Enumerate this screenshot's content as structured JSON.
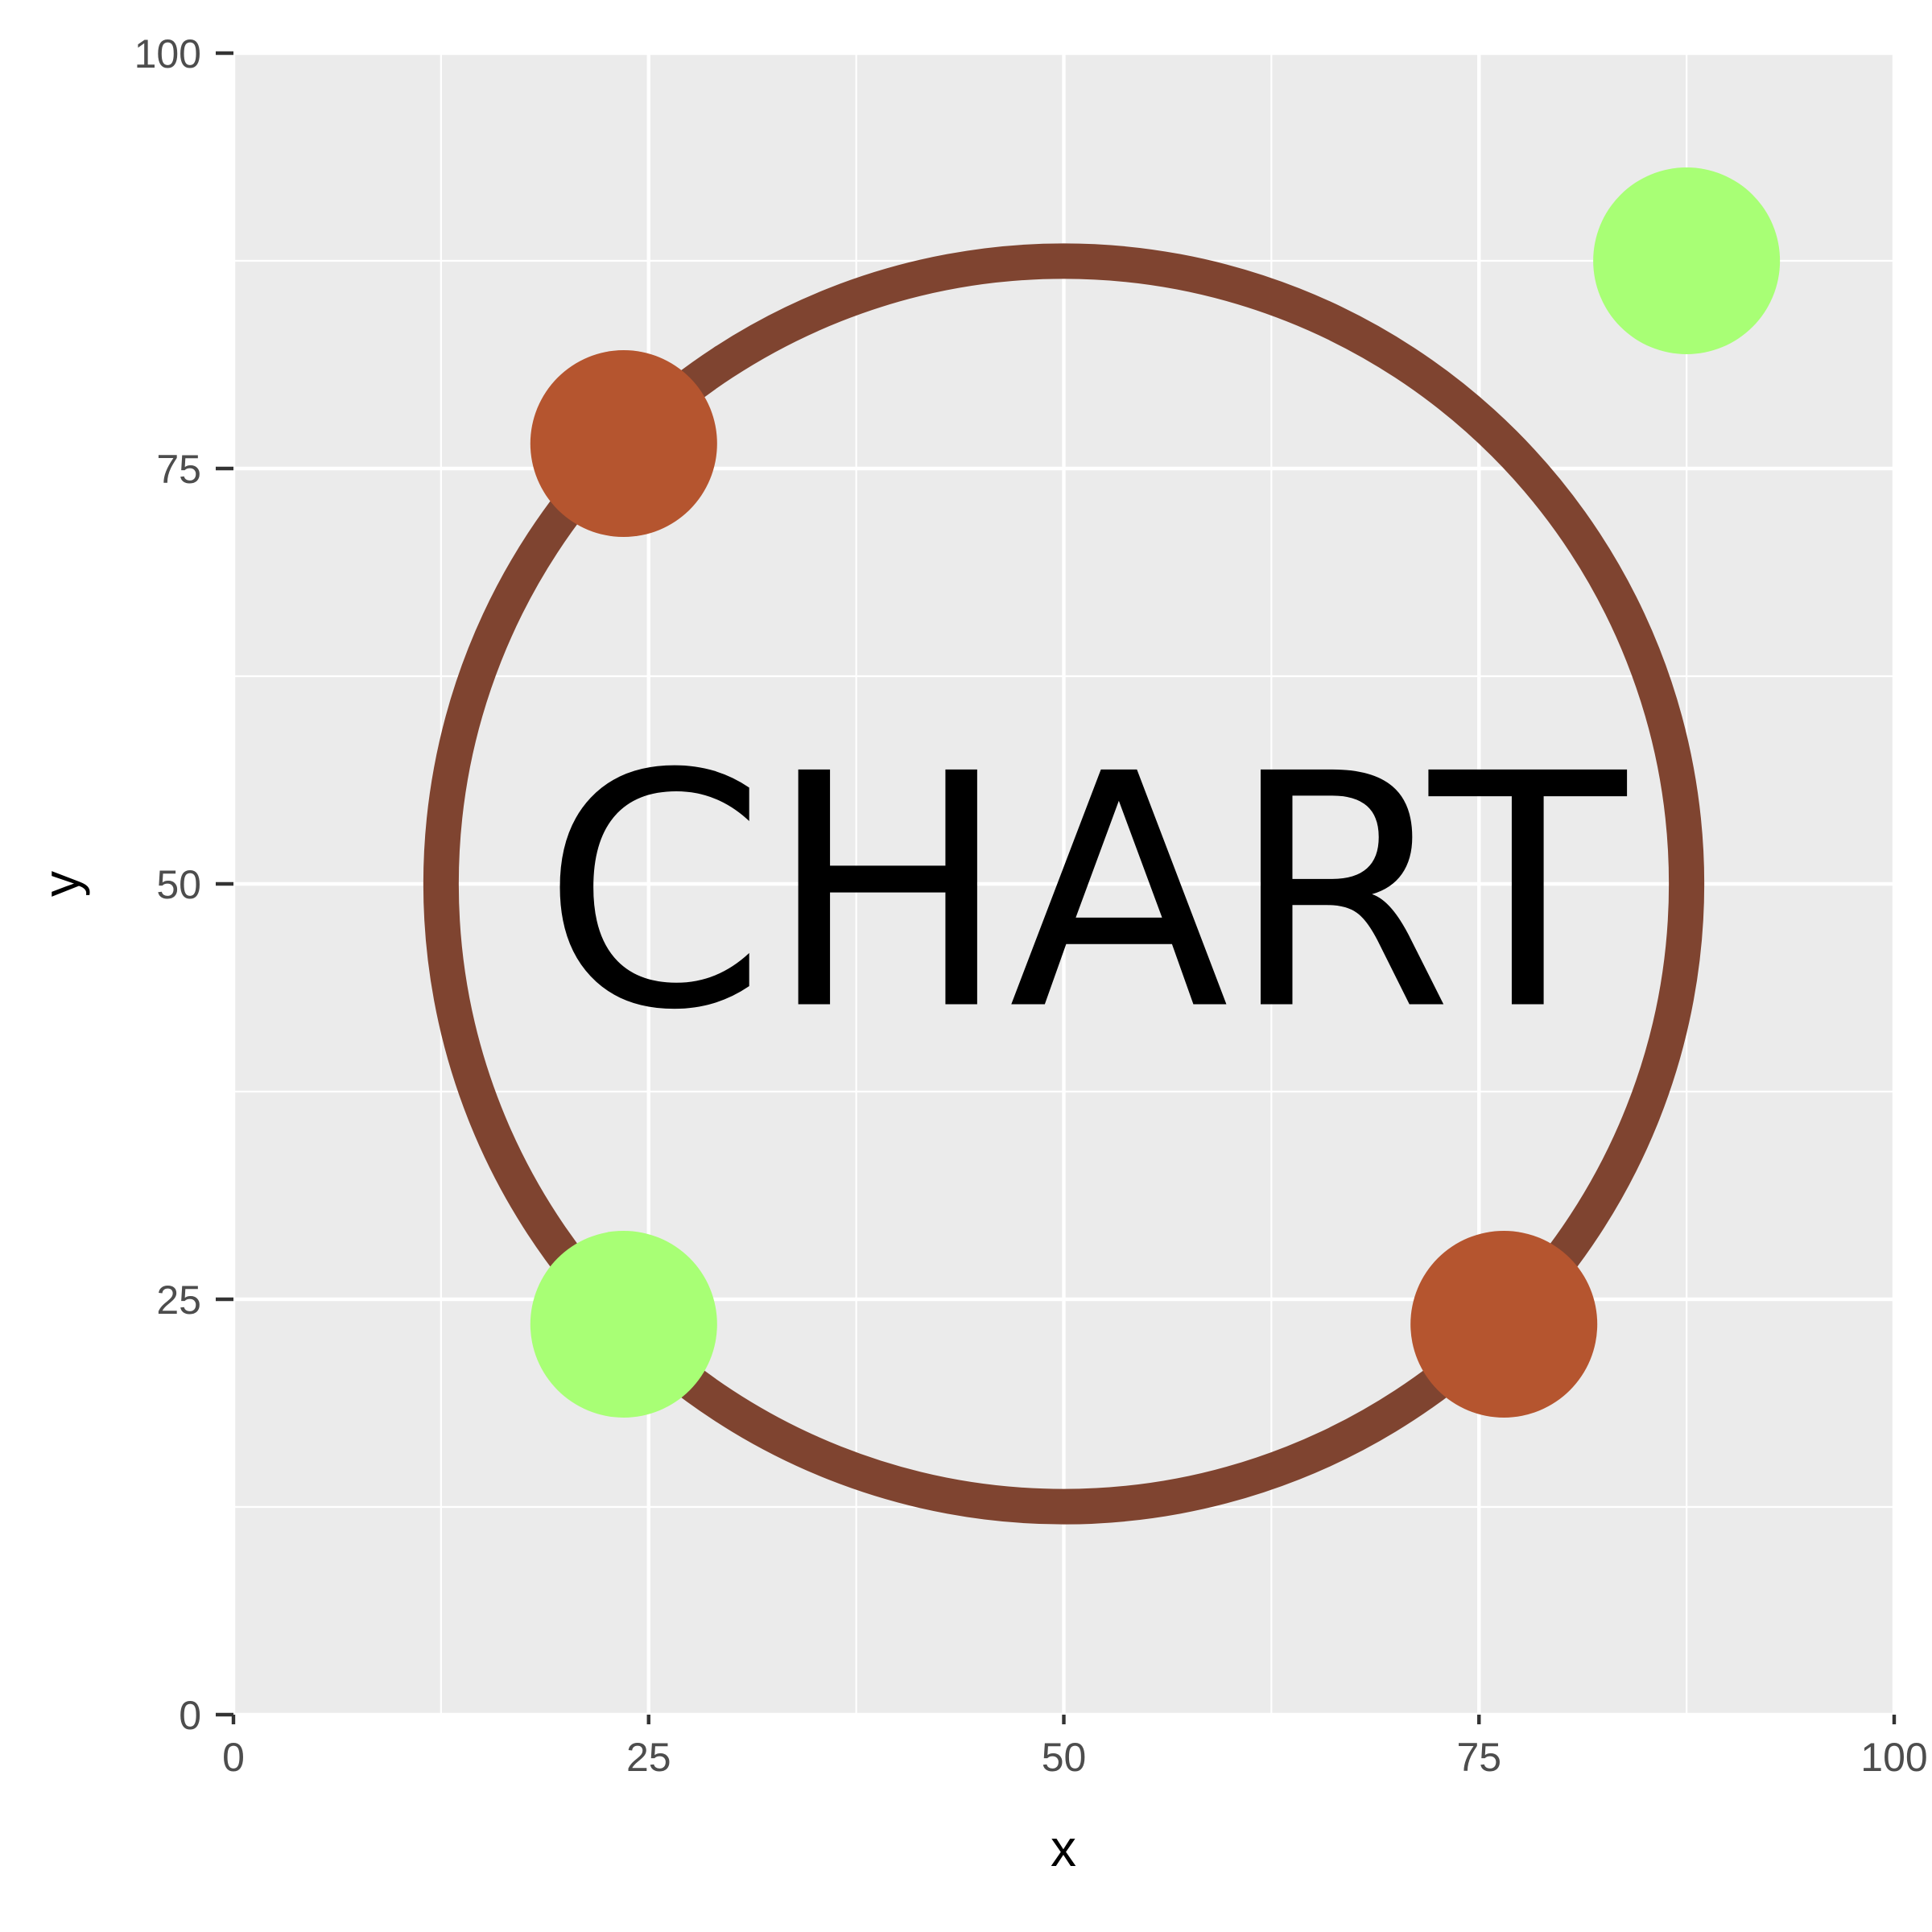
{
  "chart_data": {
    "type": "scatter",
    "xlabel": "x",
    "ylabel": "y",
    "xlim": [
      0,
      100
    ],
    "ylim": [
      0,
      100
    ],
    "x_ticks": [
      "0",
      "25",
      "50",
      "75",
      "100"
    ],
    "y_ticks": [
      "0",
      "25",
      "50",
      "75",
      "100"
    ],
    "grid": true,
    "panel_background": "#ebebeb",
    "grid_color": "#ffffff",
    "annotation": {
      "text": "CHART",
      "x": 50,
      "y": 50,
      "color": "#000000"
    },
    "ring": {
      "cx": 50,
      "cy": 50,
      "radius": 37.5,
      "color": "#7f4430"
    },
    "points": [
      {
        "x": 23.5,
        "y": 76.5,
        "color": "#b5552f"
      },
      {
        "x": 76.5,
        "y": 23.5,
        "color": "#b5552f"
      },
      {
        "x": 23.5,
        "y": 23.5,
        "color": "#a8ff75"
      },
      {
        "x": 87.5,
        "y": 87.5,
        "color": "#a8ff75"
      }
    ]
  }
}
